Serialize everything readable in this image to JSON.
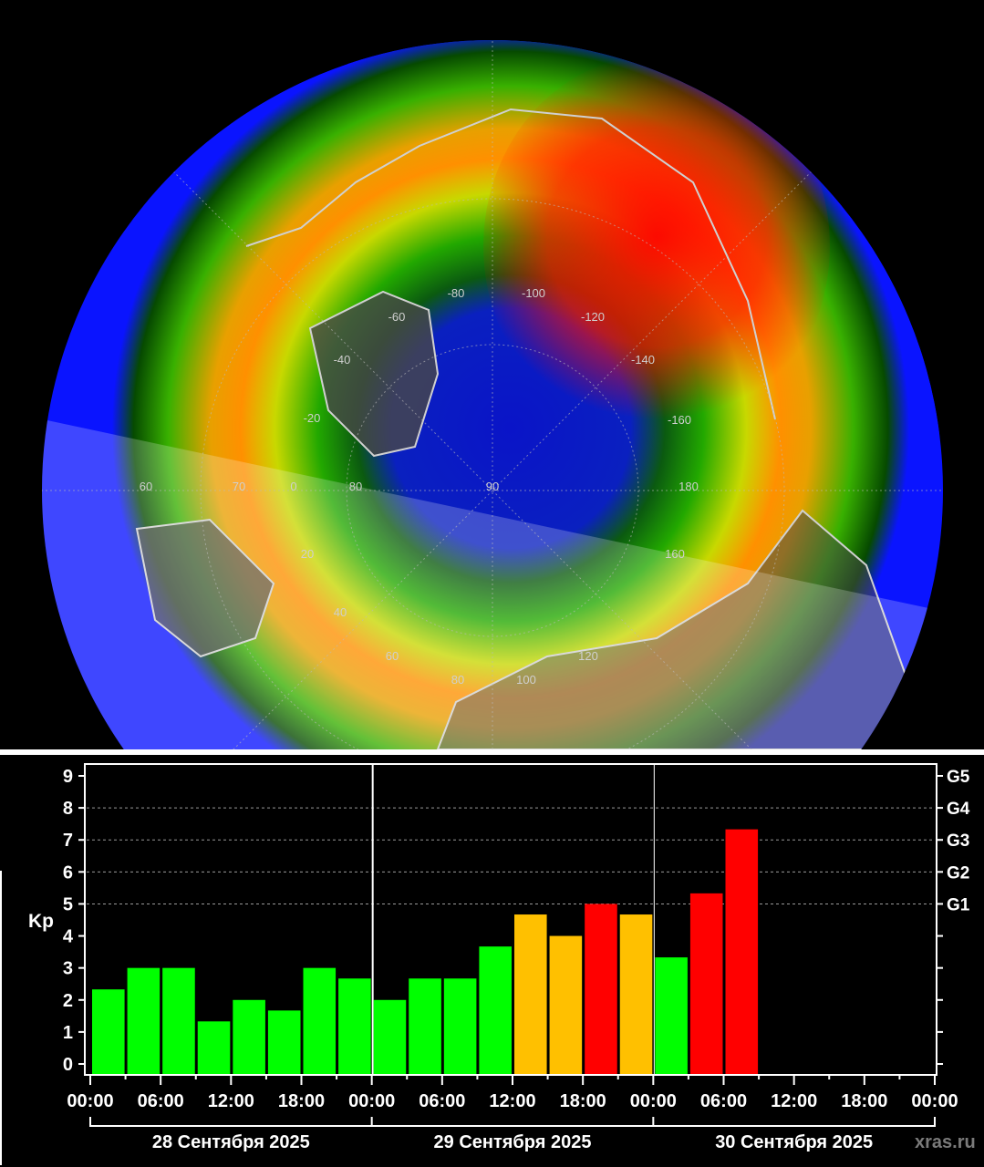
{
  "map": {
    "meridian_labels": [
      "-80",
      "-100",
      "-60",
      "-120",
      "-40",
      "-140",
      "-20",
      "-160",
      "60",
      "70",
      "0",
      "80",
      "90",
      "180",
      "20",
      "160",
      "40",
      "60",
      "80",
      "100",
      "120"
    ],
    "colors": {
      "ocean": "#0a14ff",
      "land": "#474747",
      "coast": "#d0d0d0",
      "oval_low": "#00c000",
      "oval_mid": "#ffe000",
      "oval_high": "#ff0000"
    }
  },
  "chart_data": {
    "type": "bar",
    "ylabel": "Kp",
    "ylim": [
      0,
      9
    ],
    "yticks": [
      "0",
      "1",
      "2",
      "3",
      "4",
      "5",
      "6",
      "7",
      "8",
      "9"
    ],
    "right_axis_labels": [
      {
        "kp": 5,
        "label": "G1"
      },
      {
        "kp": 6,
        "label": "G2"
      },
      {
        "kp": 7,
        "label": "G3"
      },
      {
        "kp": 8,
        "label": "G4"
      },
      {
        "kp": 9,
        "label": "G5"
      }
    ],
    "xticks": [
      "00:00",
      "06:00",
      "12:00",
      "18:00",
      "00:00",
      "06:00",
      "12:00",
      "18:00",
      "00:00",
      "06:00",
      "12:00",
      "18:00",
      "00:00"
    ],
    "days": [
      "28 Сентября 2025",
      "29 Сентября 2025",
      "30 Сентября 2025"
    ],
    "x_range_hours": [
      0,
      72
    ],
    "bar_interval_hours": 3,
    "grid": "dashed horizontal at 5-8",
    "values": [
      2.33,
      3.0,
      3.0,
      1.33,
      2.0,
      1.67,
      3.0,
      2.67,
      2.0,
      2.67,
      2.67,
      3.67,
      4.67,
      4.0,
      5.0,
      4.67,
      3.33,
      5.33,
      7.33
    ],
    "bar_colors": [
      "#00ff00",
      "#00ff00",
      "#00ff00",
      "#00ff00",
      "#00ff00",
      "#00ff00",
      "#00ff00",
      "#00ff00",
      "#00ff00",
      "#00ff00",
      "#00ff00",
      "#00ff00",
      "#ffc000",
      "#ffc000",
      "#ff0000",
      "#ffc000",
      "#00ff00",
      "#ff0000",
      "#ff0000"
    ],
    "watermark": "xras.ru"
  }
}
